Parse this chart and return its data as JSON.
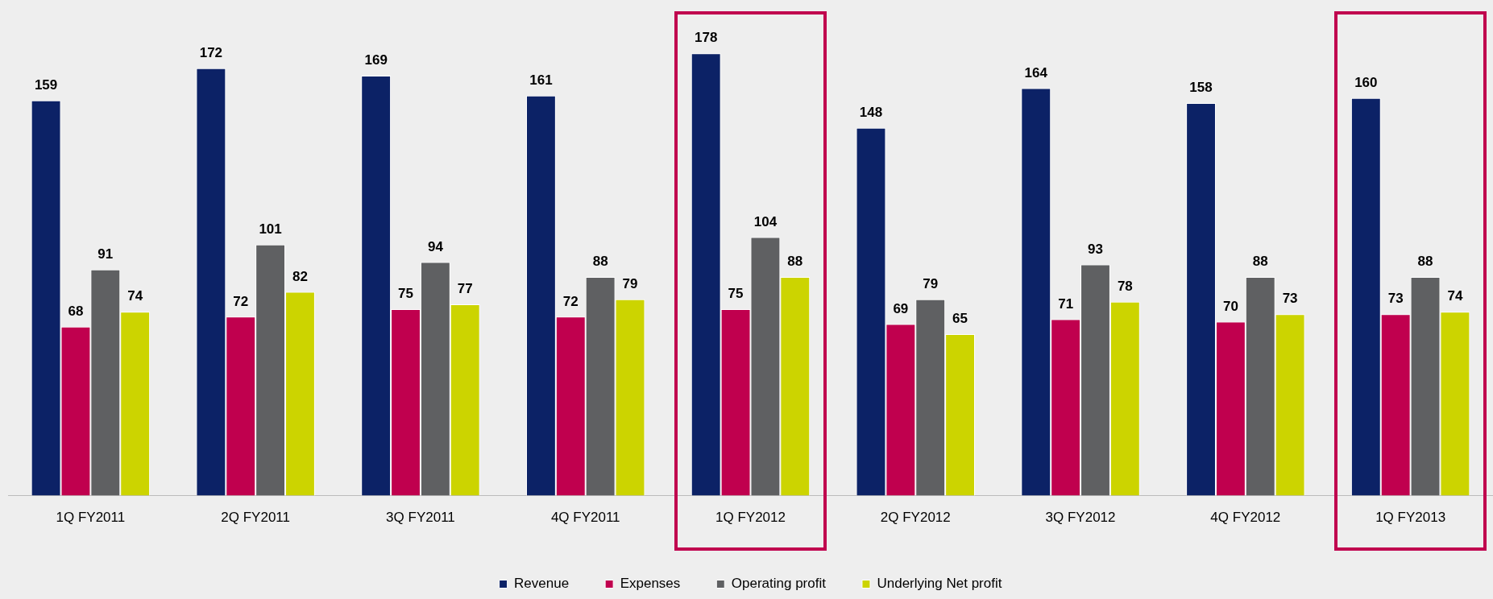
{
  "chart_data": {
    "type": "bar",
    "categories": [
      "1Q FY2011",
      "2Q FY2011",
      "3Q FY2011",
      "4Q FY2011",
      "1Q FY2012",
      "2Q FY2012",
      "3Q FY2012",
      "4Q FY2012",
      "1Q FY2013"
    ],
    "series": [
      {
        "name": "Revenue",
        "color": "#0c2266",
        "values": [
          159,
          172,
          169,
          161,
          178,
          148,
          164,
          158,
          160
        ]
      },
      {
        "name": "Expenses",
        "color": "#c0004e",
        "values": [
          68,
          72,
          75,
          72,
          75,
          69,
          71,
          70,
          73
        ]
      },
      {
        "name": "Operating profit",
        "color": "#5f6062",
        "values": [
          91,
          101,
          94,
          88,
          104,
          79,
          93,
          88,
          88
        ]
      },
      {
        "name": "Underlying Net profit",
        "color": "#ccd400",
        "values": [
          74,
          82,
          77,
          79,
          88,
          65,
          78,
          73,
          74
        ]
      }
    ],
    "data_labels": true,
    "grid": false,
    "legend": "bottom",
    "tick_labels": "x"
  }
}
